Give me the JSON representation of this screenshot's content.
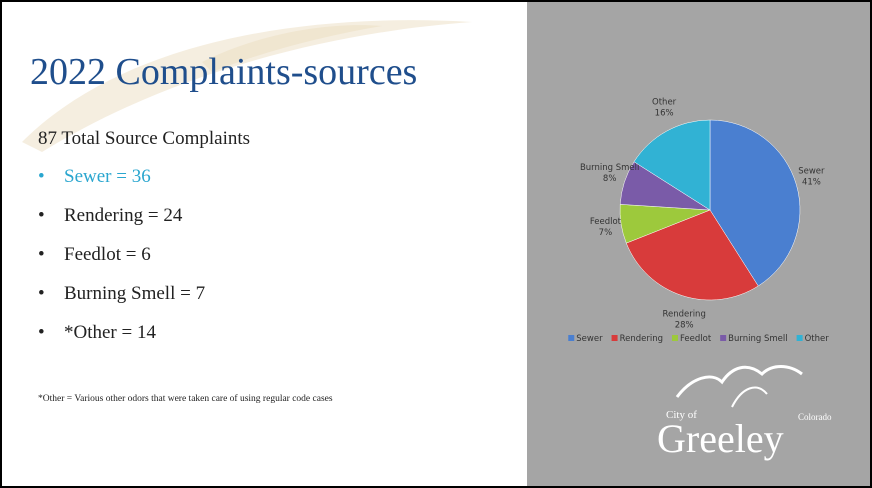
{
  "slide": {
    "title": "2022 Complaints-sources",
    "subtitle": "87 Total Source Complaints",
    "bullets": [
      "Sewer = 36",
      "Rendering = 24",
      "Feedlot = 6",
      "Burning Smell = 7",
      "*Other = 14"
    ],
    "footnote": "*Other = Various other odors that were taken care of using regular code cases"
  },
  "logo": {
    "city_of": "City of",
    "name": "Greeley",
    "state": "Colorado"
  },
  "chart_data": {
    "type": "pie",
    "categories": [
      "Sewer",
      "Rendering",
      "Feedlot",
      "Burning Smell",
      "Other"
    ],
    "values": [
      41,
      28,
      7,
      8,
      16
    ],
    "value_labels": [
      "41%",
      "28%",
      "7%",
      "8%",
      "16%"
    ],
    "colors": [
      "#4a7fd0",
      "#d83b3b",
      "#9dc93c",
      "#7a5ba8",
      "#31b2d4"
    ],
    "legend": "bottom"
  }
}
